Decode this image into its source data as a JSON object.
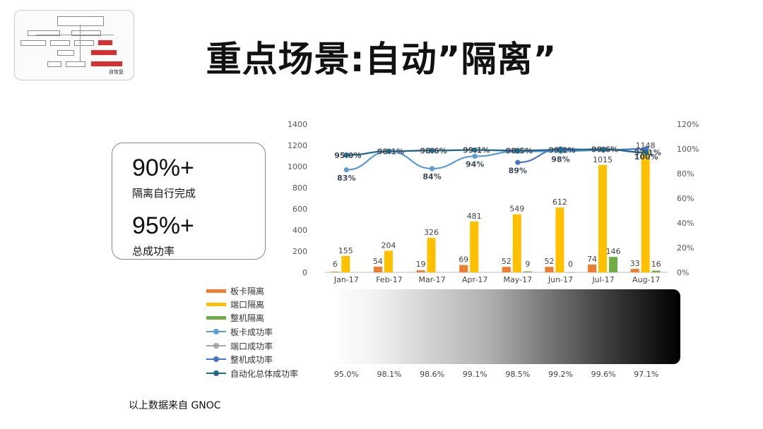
{
  "slide": {
    "title": "重点场景:自动”隔离”",
    "thumbnail_label": "自恢复",
    "footnote": "以上数据来自 GNOC"
  },
  "kpis": [
    {
      "value": "90%+",
      "label": "隔离自行完成"
    },
    {
      "value": "95%+",
      "label": "总成功率"
    }
  ],
  "chart_data": {
    "type": "bar",
    "categories": [
      "Jan-17",
      "Feb-17",
      "Mar-17",
      "Apr-17",
      "May-17",
      "Jun-17",
      "Jul-17",
      "Aug-17"
    ],
    "y_left": {
      "min": 0,
      "max": 1400,
      "ticks": [
        "0",
        "200",
        "400",
        "600",
        "800",
        "1000",
        "1200",
        "1400"
      ]
    },
    "y_right": {
      "min": 0,
      "max": 1.2,
      "ticks": [
        "0%",
        "20%",
        "40%",
        "60%",
        "80%",
        "100%",
        "120%"
      ]
    },
    "bar_series": [
      {
        "name": "板卡隔离",
        "color": "#ed7d31",
        "values": [
          6,
          54,
          19,
          69,
          52,
          52,
          74,
          33
        ],
        "labels": [
          "6",
          "54",
          "19",
          "69",
          "52",
          "52",
          "74",
          "33"
        ]
      },
      {
        "name": "端口隔离",
        "color": "#ffc000",
        "values": [
          155,
          204,
          326,
          481,
          549,
          612,
          1015,
          1148
        ],
        "labels": [
          "155",
          "204",
          "326",
          "481",
          "549",
          "612",
          "1015",
          "1148"
        ]
      },
      {
        "name": "整机隔离",
        "color": "#70ad47",
        "values": [
          null,
          null,
          null,
          null,
          9,
          0,
          146,
          16
        ],
        "labels": [
          "",
          "",
          "",
          "",
          "9",
          "0",
          "146",
          "16"
        ]
      }
    ],
    "line_series": [
      {
        "name": "板卡成功率",
        "color": "#5b9bd5",
        "values": [
          0.83,
          0.98,
          0.84,
          0.94,
          0.98,
          0.98,
          0.99,
          1.0
        ],
        "labels": [
          "83%",
          "",
          "84%",
          "94%",
          "",
          "98%",
          "",
          "100%"
        ]
      },
      {
        "name": "端口成功率",
        "color": "#a5a5a5",
        "values": [
          0.95,
          0.98,
          0.99,
          0.99,
          0.99,
          0.99,
          1.0,
          0.97
        ],
        "labels": [
          "",
          "",
          "",
          "",
          "",
          "",
          "",
          ""
        ]
      },
      {
        "name": "整机成功率",
        "color": "#4472c4",
        "values": [
          null,
          null,
          null,
          null,
          0.89,
          1.0,
          0.99,
          1.0
        ],
        "labels": [
          "",
          "",
          "",
          "",
          "89%",
          "",
          "",
          ""
        ]
      },
      {
        "name": "自动化总体成功率",
        "color": "#1f6a8c",
        "values": [
          0.95,
          0.981,
          0.986,
          0.991,
          0.985,
          0.992,
          0.996,
          0.971
        ],
        "labels": [
          "95.0%",
          "98.1%",
          "98.6%",
          "99.1%",
          "98.5%",
          "99.2%",
          "99.6%",
          "97.1%"
        ]
      }
    ],
    "table_row": {
      "label": "自动化总体成功率",
      "values": [
        "95.0%",
        "98.1%",
        "98.6%",
        "99.1%",
        "98.5%",
        "99.2%",
        "99.6%",
        "97.1%"
      ]
    }
  }
}
